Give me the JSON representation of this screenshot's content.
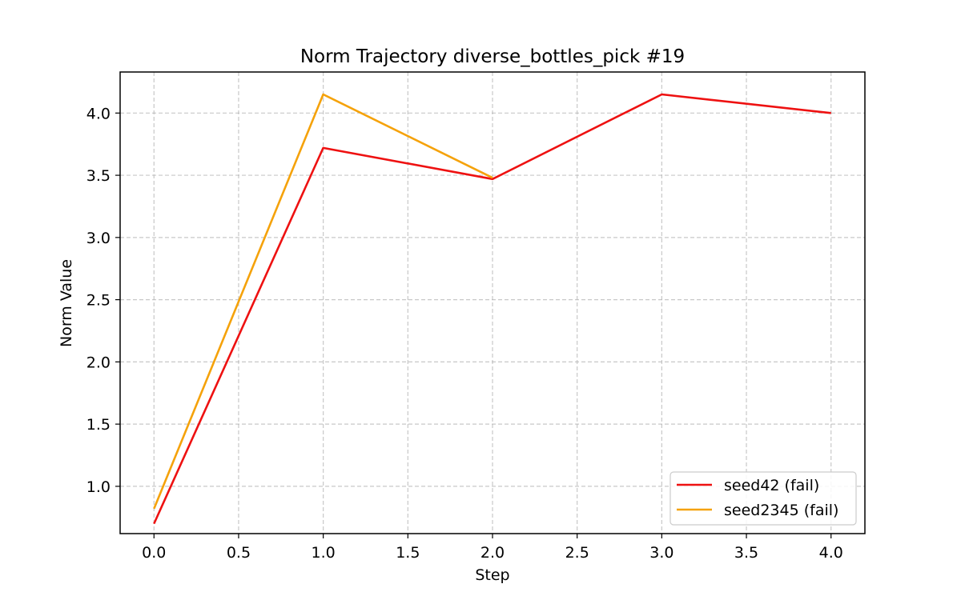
{
  "chart_data": {
    "type": "line",
    "title": "Norm Trajectory diverse_bottles_pick #19",
    "xlabel": "Step",
    "ylabel": "Norm Value",
    "xlim": [
      -0.2,
      4.2
    ],
    "ylim": [
      0.62,
      4.33
    ],
    "xticks": [
      0.0,
      0.5,
      1.0,
      1.5,
      2.0,
      2.5,
      3.0,
      3.5,
      4.0
    ],
    "xtick_labels": [
      "0.0",
      "0.5",
      "1.0",
      "1.5",
      "2.0",
      "2.5",
      "3.0",
      "3.5",
      "4.0"
    ],
    "yticks": [
      1.0,
      1.5,
      2.0,
      2.5,
      3.0,
      3.5,
      4.0
    ],
    "ytick_labels": [
      "1.0",
      "1.5",
      "2.0",
      "2.5",
      "3.0",
      "3.5",
      "4.0"
    ],
    "grid": true,
    "legend_position": "lower-right",
    "series": [
      {
        "name": "seed42 (fail)",
        "color": "#ee1111",
        "x": [
          0,
          1,
          2,
          3,
          4
        ],
        "y": [
          0.7,
          3.72,
          3.47,
          4.15,
          4.0
        ]
      },
      {
        "name": "seed2345 (fail)",
        "color": "#f5a20a",
        "x": [
          0,
          1,
          2
        ],
        "y": [
          0.82,
          4.15,
          3.48
        ]
      }
    ]
  }
}
